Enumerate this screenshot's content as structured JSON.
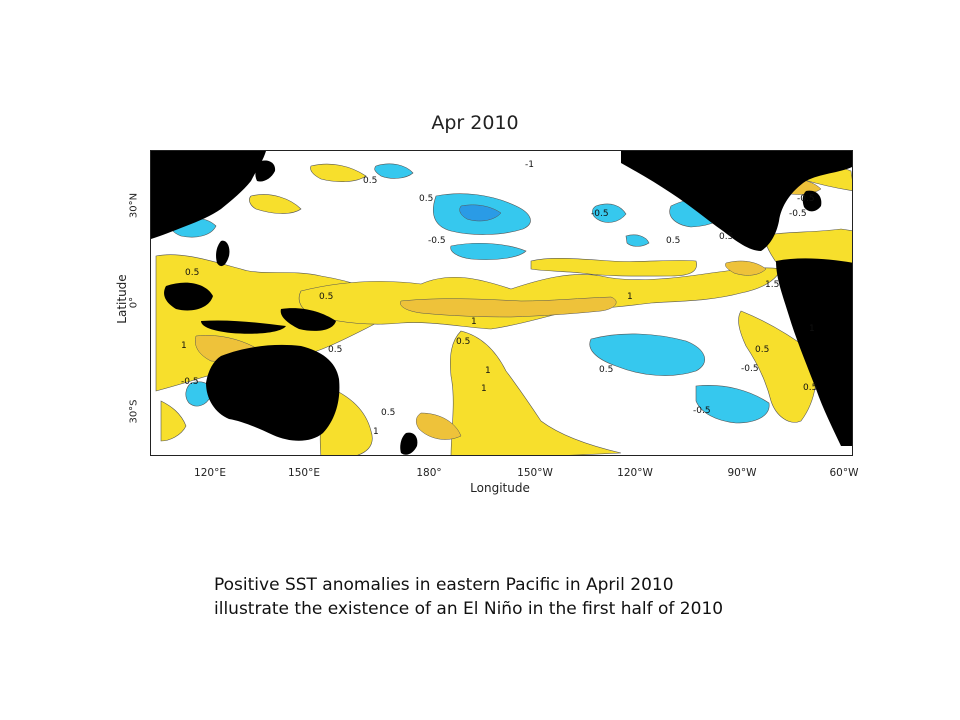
{
  "figure": {
    "title": "Apr 2010",
    "ylabel": "Latitude",
    "xlabel": "Longitude",
    "yticks": [
      "30°N",
      "0°",
      "30°S"
    ],
    "xticks": [
      "120°E",
      "150°E",
      "180°",
      "150°W",
      "120°W",
      "90°W",
      "60°W"
    ],
    "contour_labels": [
      "-1",
      "0.5",
      "-0.5",
      "0.5",
      "-0.5",
      "-0.5",
      "0.5",
      "0.5",
      "-0.5",
      "0.5",
      "1",
      "1.5",
      "1",
      "0.5",
      "1",
      "0.5",
      "1",
      "0.5",
      "0.5",
      "-0.5",
      "-0.5",
      "0.5",
      "1",
      "0.5",
      "1",
      "-0.5",
      "0.5",
      "1"
    ],
    "colors": {
      "positive_anomaly": "#f7df2c",
      "strong_positive_anomaly": "#eec23a",
      "negative_anomaly": "#36c8ee",
      "strong_negative_anomaly": "#2a9be6",
      "land": "#000000",
      "neutral": "#ffffff"
    }
  },
  "caption": {
    "line1": "Positive SST anomalies in eastern Pacific in April 2010",
    "line2": "illustrate the existence of an El Niño in the first half of 2010"
  }
}
